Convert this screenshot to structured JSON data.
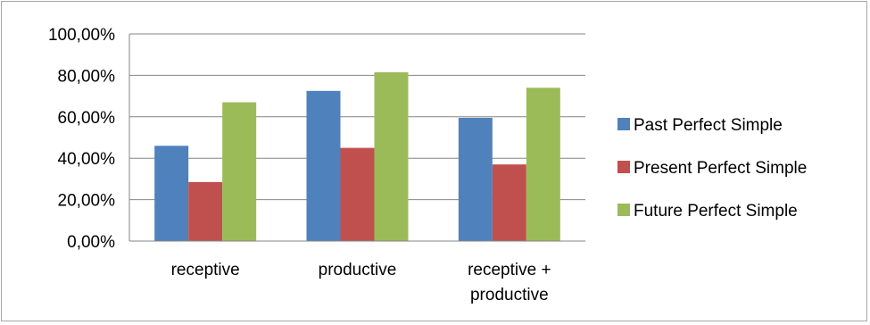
{
  "chart_data": {
    "type": "bar",
    "title": "",
    "xlabel": "",
    "ylabel": "",
    "categories": [
      "receptive",
      "productive",
      "receptive + productive"
    ],
    "category_lines": [
      [
        "receptive"
      ],
      [
        "productive"
      ],
      [
        "receptive +",
        "productive"
      ]
    ],
    "series": [
      {
        "name": "Past Perfect Simple",
        "color": "#4f81bd",
        "values": [
          46.0,
          72.5,
          59.5
        ]
      },
      {
        "name": "Present Perfect Simple",
        "color": "#c0504d",
        "values": [
          28.5,
          45.0,
          37.0
        ]
      },
      {
        "name": "Future Perfect Simple",
        "color": "#9bbb59",
        "values": [
          67.0,
          81.5,
          74.0
        ]
      }
    ],
    "ylim": [
      0,
      100
    ],
    "yticks": [
      0,
      20,
      40,
      60,
      80,
      100
    ],
    "ytick_labels": [
      "0,00%",
      "20,00%",
      "40,00%",
      "60,00%",
      "80,00%",
      "100,00%"
    ],
    "grid": true,
    "legend": "right"
  }
}
